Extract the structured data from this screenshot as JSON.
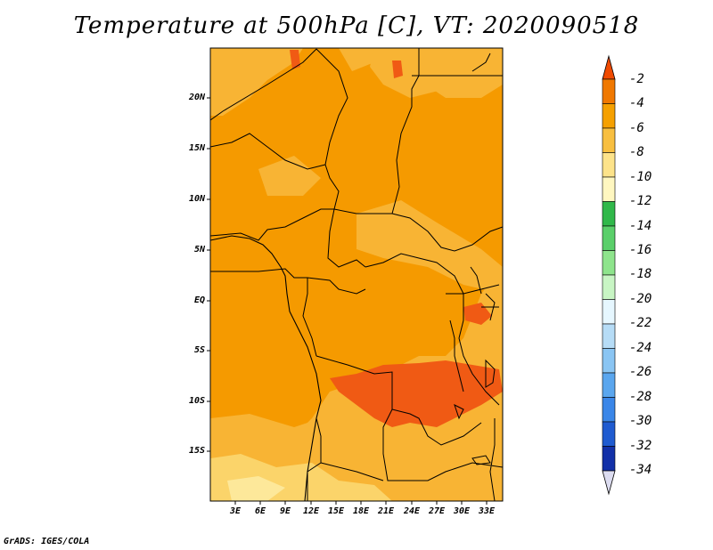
{
  "title": "Temperature at 500hPa [C], VT: 2020090518",
  "credit": "GrADS: IGES/COLA",
  "axes": {
    "lat_labels": [
      "20N",
      "15N",
      "10N",
      "5N",
      "EQ",
      "5S",
      "10S",
      "15S"
    ],
    "lon_labels": [
      "3E",
      "6E",
      "9E",
      "12E",
      "15E",
      "18E",
      "21E",
      "24E",
      "27E",
      "30E",
      "33E"
    ]
  },
  "colorbar": {
    "labels": [
      "-2",
      "-4",
      "-6",
      "-8",
      "-10",
      "-12",
      "-14",
      "-16",
      "-18",
      "-20",
      "-22",
      "-24",
      "-26",
      "-28",
      "-30",
      "-32",
      "-34"
    ],
    "colors": [
      "#f04a00",
      "#f07800",
      "#f5a000",
      "#f8bf40",
      "#fde38a",
      "#fff7c0",
      "#30b84a",
      "#5acf6a",
      "#8ee48c",
      "#c8f5c4",
      "#e6f7ff",
      "#b6dcf6",
      "#8ac5f3",
      "#5aa6ee",
      "#3a86e8",
      "#1f5bd0",
      "#1230a8",
      "#0a1778"
    ]
  },
  "map_colors": {
    "warm_-2": "#f05a14",
    "mid_-4": "#f59a00",
    "cool_-6": "#f8b434",
    "cooler_-8": "#fbd46a",
    "coolest_-10": "#fde89a"
  }
}
